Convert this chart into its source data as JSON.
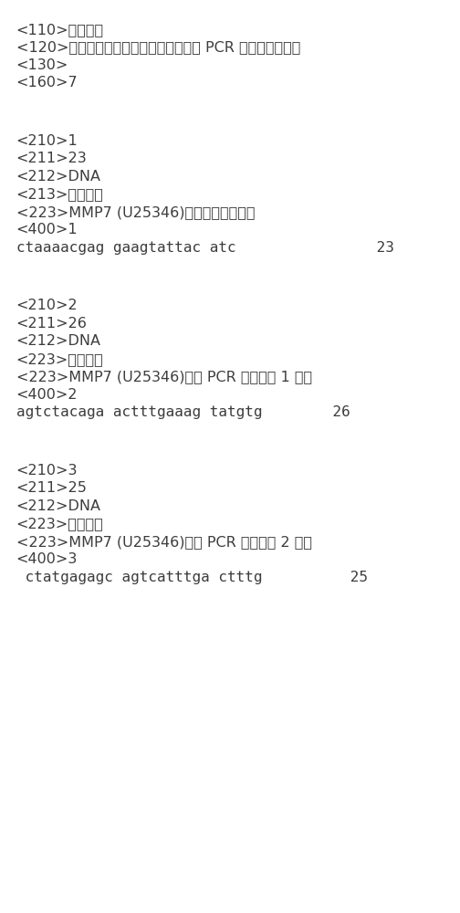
{
  "background_color": "#ffffff",
  "text_color": "#3d3d3d",
  "fontsize": 11.5,
  "lines": [
    {
      "text": "<110>东南大学",
      "indent": false,
      "blank_after": false
    },
    {
      "text": "<120>一种两核苷酸不同步合成测序分析 PCR 产物单体型方法",
      "indent": false,
      "blank_after": false
    },
    {
      "text": "<130>",
      "indent": false,
      "blank_after": false
    },
    {
      "text": "<160>7",
      "indent": false,
      "blank_after": true
    },
    {
      "text": "",
      "indent": false,
      "blank_after": false
    },
    {
      "text": "<210>1",
      "indent": false,
      "blank_after": false
    },
    {
      "text": "<211>23",
      "indent": false,
      "blank_after": false
    },
    {
      "text": "<212>DNA",
      "indent": false,
      "blank_after": false
    },
    {
      "text": "<213>人工序列",
      "indent": false,
      "blank_after": false
    },
    {
      "text": "<223>MMP7 (U25346)基因测序引物序列",
      "indent": false,
      "blank_after": false
    },
    {
      "text": "<400>1",
      "indent": false,
      "blank_after": false
    },
    {
      "text": "ctaaaacgag gaagtattac atc                23",
      "indent": false,
      "blank_after": true,
      "mono": true
    },
    {
      "text": "",
      "indent": false,
      "blank_after": false
    },
    {
      "text": "<210>2",
      "indent": false,
      "blank_after": false
    },
    {
      "text": "<211>26",
      "indent": false,
      "blank_after": false
    },
    {
      "text": "<212>DNA",
      "indent": false,
      "blank_after": false
    },
    {
      "text": "<223>人工序列",
      "indent": false,
      "blank_after": false
    },
    {
      "text": "<223>MMP7 (U25346)基因 PCR 扩增引物 1 序列",
      "indent": false,
      "blank_after": false
    },
    {
      "text": "<400>2",
      "indent": false,
      "blank_after": false
    },
    {
      "text": "agtctacaga actttgaaag tatgtg        26",
      "indent": false,
      "blank_after": true,
      "mono": true
    },
    {
      "text": "",
      "indent": false,
      "blank_after": false
    },
    {
      "text": "<210>3",
      "indent": false,
      "blank_after": false
    },
    {
      "text": "<211>25",
      "indent": false,
      "blank_after": false
    },
    {
      "text": "<212>DNA",
      "indent": false,
      "blank_after": false
    },
    {
      "text": "<223>人工序列",
      "indent": false,
      "blank_after": false
    },
    {
      "text": "<223>MMP7 (U25346)基因 PCR 扩增引物 2 序列",
      "indent": false,
      "blank_after": false
    },
    {
      "text": "<400>3",
      "indent": false,
      "blank_after": false
    },
    {
      "text": " ctatgagagc agtcatttga ctttg          25",
      "indent": false,
      "blank_after": false,
      "mono": true
    }
  ]
}
